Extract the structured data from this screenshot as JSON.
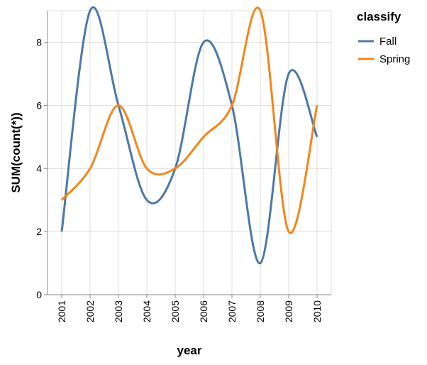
{
  "chart_data": {
    "type": "line",
    "xlabel": "year",
    "ylabel": "SUM(count(*))",
    "x": [
      "2001",
      "2002",
      "2003",
      "2004",
      "2005",
      "2006",
      "2007",
      "2008",
      "2009",
      "2010"
    ],
    "ylim": [
      0,
      9
    ],
    "yticks": [
      "0",
      "2",
      "4",
      "6",
      "8"
    ],
    "grid": true,
    "interpolation": "monotone",
    "legend": {
      "title": "classify",
      "position": "top-right"
    },
    "series": [
      {
        "name": "Fall",
        "color": "#4c78a8",
        "values": [
          2,
          9,
          6,
          3,
          4,
          8,
          6,
          1,
          7,
          5
        ]
      },
      {
        "name": "Spring",
        "color": "#f58518",
        "values": [
          3,
          4,
          6,
          4,
          4,
          5,
          6,
          9,
          2,
          6
        ]
      }
    ]
  }
}
